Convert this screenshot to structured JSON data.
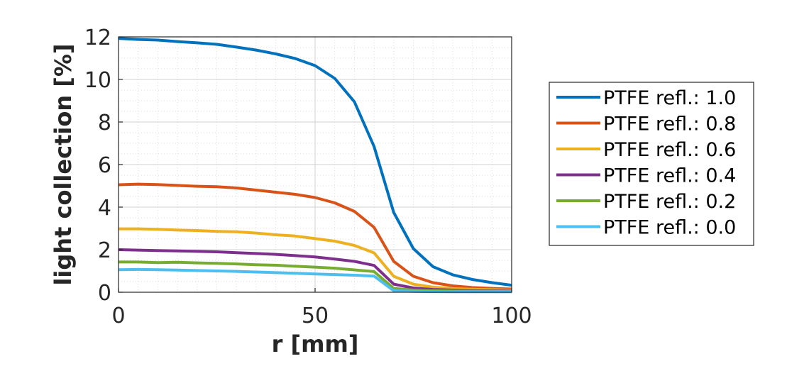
{
  "chart_data": {
    "type": "line",
    "xlabel": "r [mm]",
    "ylabel": "light collection [%]",
    "xlim": [
      0,
      100
    ],
    "ylim": [
      0,
      12
    ],
    "xticks": [
      0,
      50,
      100
    ],
    "yticks": [
      0,
      2,
      4,
      6,
      8,
      10,
      12
    ],
    "grid": true,
    "minor_grid": true,
    "legend_position": "outside-right",
    "series": [
      {
        "name": "PTFE refl.: 1.0",
        "color": "#0072bd",
        "x": [
          0,
          5,
          10,
          15,
          20,
          25,
          30,
          35,
          40,
          45,
          50,
          55,
          60,
          65,
          70,
          75,
          80,
          85,
          90,
          95,
          100
        ],
        "y": [
          11.93,
          11.88,
          11.85,
          11.78,
          11.72,
          11.65,
          11.52,
          11.38,
          11.2,
          10.98,
          10.65,
          10.05,
          8.95,
          6.85,
          3.75,
          2.05,
          1.2,
          0.82,
          0.6,
          0.45,
          0.33
        ]
      },
      {
        "name": "PTFE refl.: 0.8",
        "color": "#d95319",
        "x": [
          0,
          5,
          10,
          15,
          20,
          25,
          30,
          35,
          40,
          45,
          50,
          55,
          60,
          65,
          70,
          75,
          80,
          85,
          90,
          95,
          100
        ],
        "y": [
          5.05,
          5.08,
          5.06,
          5.02,
          4.98,
          4.96,
          4.9,
          4.8,
          4.7,
          4.6,
          4.45,
          4.2,
          3.8,
          3.05,
          1.45,
          0.75,
          0.45,
          0.3,
          0.22,
          0.18,
          0.15
        ]
      },
      {
        "name": "PTFE refl.: 0.6",
        "color": "#edb120",
        "x": [
          0,
          5,
          10,
          15,
          20,
          25,
          30,
          35,
          40,
          45,
          50,
          55,
          60,
          65,
          70,
          75,
          80,
          85,
          90,
          95,
          100
        ],
        "y": [
          2.98,
          2.98,
          2.96,
          2.92,
          2.9,
          2.86,
          2.84,
          2.78,
          2.7,
          2.64,
          2.52,
          2.4,
          2.2,
          1.85,
          0.75,
          0.38,
          0.24,
          0.17,
          0.14,
          0.12,
          0.1
        ]
      },
      {
        "name": "PTFE refl.: 0.4",
        "color": "#7e2f8e",
        "x": [
          0,
          5,
          10,
          15,
          20,
          25,
          30,
          35,
          40,
          45,
          50,
          55,
          60,
          65,
          70,
          75,
          80,
          85,
          90,
          95,
          100
        ],
        "y": [
          2.0,
          1.98,
          1.96,
          1.94,
          1.92,
          1.9,
          1.86,
          1.82,
          1.78,
          1.72,
          1.66,
          1.56,
          1.45,
          1.26,
          0.38,
          0.2,
          0.13,
          0.1,
          0.08,
          0.07,
          0.06
        ]
      },
      {
        "name": "PTFE refl.: 0.2",
        "color": "#77ac30",
        "x": [
          0,
          5,
          10,
          15,
          20,
          25,
          30,
          35,
          40,
          45,
          50,
          55,
          60,
          65,
          70,
          75,
          80,
          85,
          90,
          95,
          100
        ],
        "y": [
          1.42,
          1.42,
          1.39,
          1.41,
          1.38,
          1.36,
          1.33,
          1.29,
          1.27,
          1.22,
          1.18,
          1.13,
          1.05,
          0.97,
          0.18,
          0.1,
          0.07,
          0.06,
          0.05,
          0.05,
          0.04
        ]
      },
      {
        "name": "PTFE refl.: 0.0",
        "color": "#4dbeee",
        "x": [
          0,
          5,
          10,
          15,
          20,
          25,
          30,
          35,
          40,
          45,
          50,
          55,
          60,
          65,
          70,
          75,
          80,
          85,
          90,
          95,
          100
        ],
        "y": [
          1.06,
          1.07,
          1.06,
          1.04,
          1.02,
          1.0,
          0.98,
          0.95,
          0.92,
          0.89,
          0.86,
          0.83,
          0.8,
          0.76,
          0.07,
          0.04,
          0.03,
          0.02,
          0.02,
          0.02,
          0.02
        ]
      }
    ]
  }
}
